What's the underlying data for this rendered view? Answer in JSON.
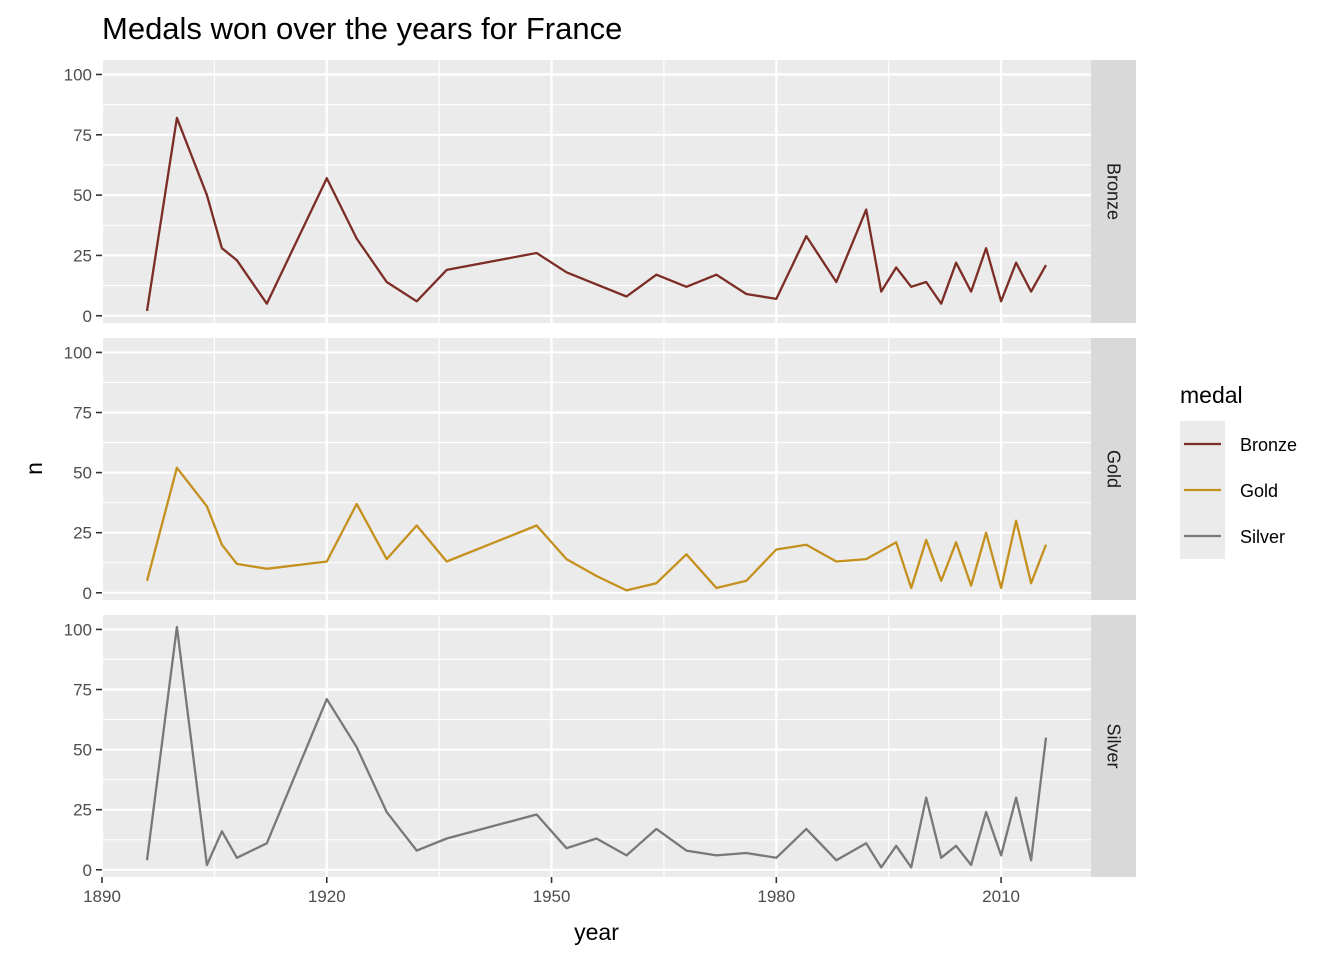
{
  "chart_data": {
    "type": "line",
    "title": "Medals won over the years for France",
    "xlabel": "year",
    "ylabel": "n",
    "xlim": [
      1890,
      2022
    ],
    "ylim": [
      -3,
      106
    ],
    "x_ticks": [
      1890,
      1920,
      1950,
      1980,
      2010
    ],
    "y_ticks": [
      0,
      25,
      50,
      75,
      100
    ],
    "facets": [
      "Bronze",
      "Gold",
      "Silver"
    ],
    "legend": {
      "title": "medal",
      "position": "right",
      "items": [
        "Bronze",
        "Gold",
        "Silver"
      ]
    },
    "colors": {
      "Bronze": "#7b2d26",
      "Gold": "#c4901e",
      "Silver": "#7b7777"
    },
    "grid": true,
    "series": [
      {
        "name": "Bronze",
        "x": [
          1896,
          1900,
          1904,
          1906,
          1908,
          1912,
          1920,
          1924,
          1928,
          1932,
          1936,
          1948,
          1952,
          1956,
          1960,
          1964,
          1968,
          1972,
          1976,
          1980,
          1984,
          1988,
          1992,
          1994,
          1996,
          1998,
          2000,
          2002,
          2004,
          2006,
          2008,
          2010,
          2012,
          2014,
          2016
        ],
        "values": [
          2,
          82,
          50,
          28,
          23,
          5,
          57,
          32,
          14,
          6,
          19,
          26,
          18,
          13,
          8,
          17,
          12,
          17,
          9,
          7,
          33,
          14,
          44,
          10,
          20,
          12,
          14,
          5,
          22,
          10,
          28,
          6,
          22,
          10,
          21
        ]
      },
      {
        "name": "Gold",
        "x": [
          1896,
          1900,
          1904,
          1906,
          1908,
          1912,
          1920,
          1924,
          1928,
          1932,
          1936,
          1948,
          1952,
          1956,
          1960,
          1964,
          1968,
          1972,
          1976,
          1980,
          1984,
          1988,
          1992,
          1996,
          1998,
          2000,
          2002,
          2004,
          2006,
          2008,
          2010,
          2012,
          2014,
          2016
        ],
        "values": [
          5,
          52,
          36,
          20,
          12,
          10,
          13,
          37,
          14,
          28,
          13,
          28,
          14,
          7,
          1,
          4,
          16,
          2,
          5,
          18,
          20,
          13,
          14,
          21,
          2,
          22,
          5,
          21,
          3,
          25,
          2,
          30,
          4,
          20
        ]
      },
      {
        "name": "Silver",
        "x": [
          1896,
          1900,
          1904,
          1906,
          1908,
          1912,
          1920,
          1924,
          1928,
          1932,
          1936,
          1948,
          1952,
          1956,
          1960,
          1964,
          1968,
          1972,
          1976,
          1980,
          1984,
          1988,
          1992,
          1994,
          1996,
          1998,
          2000,
          2002,
          2004,
          2006,
          2008,
          2010,
          2012,
          2014,
          2016
        ],
        "values": [
          4,
          101,
          2,
          16,
          5,
          11,
          71,
          51,
          24,
          8,
          13,
          23,
          9,
          13,
          6,
          17,
          8,
          6,
          7,
          5,
          17,
          4,
          11,
          1,
          10,
          1,
          30,
          5,
          10,
          2,
          24,
          6,
          30,
          4,
          55
        ]
      }
    ]
  }
}
